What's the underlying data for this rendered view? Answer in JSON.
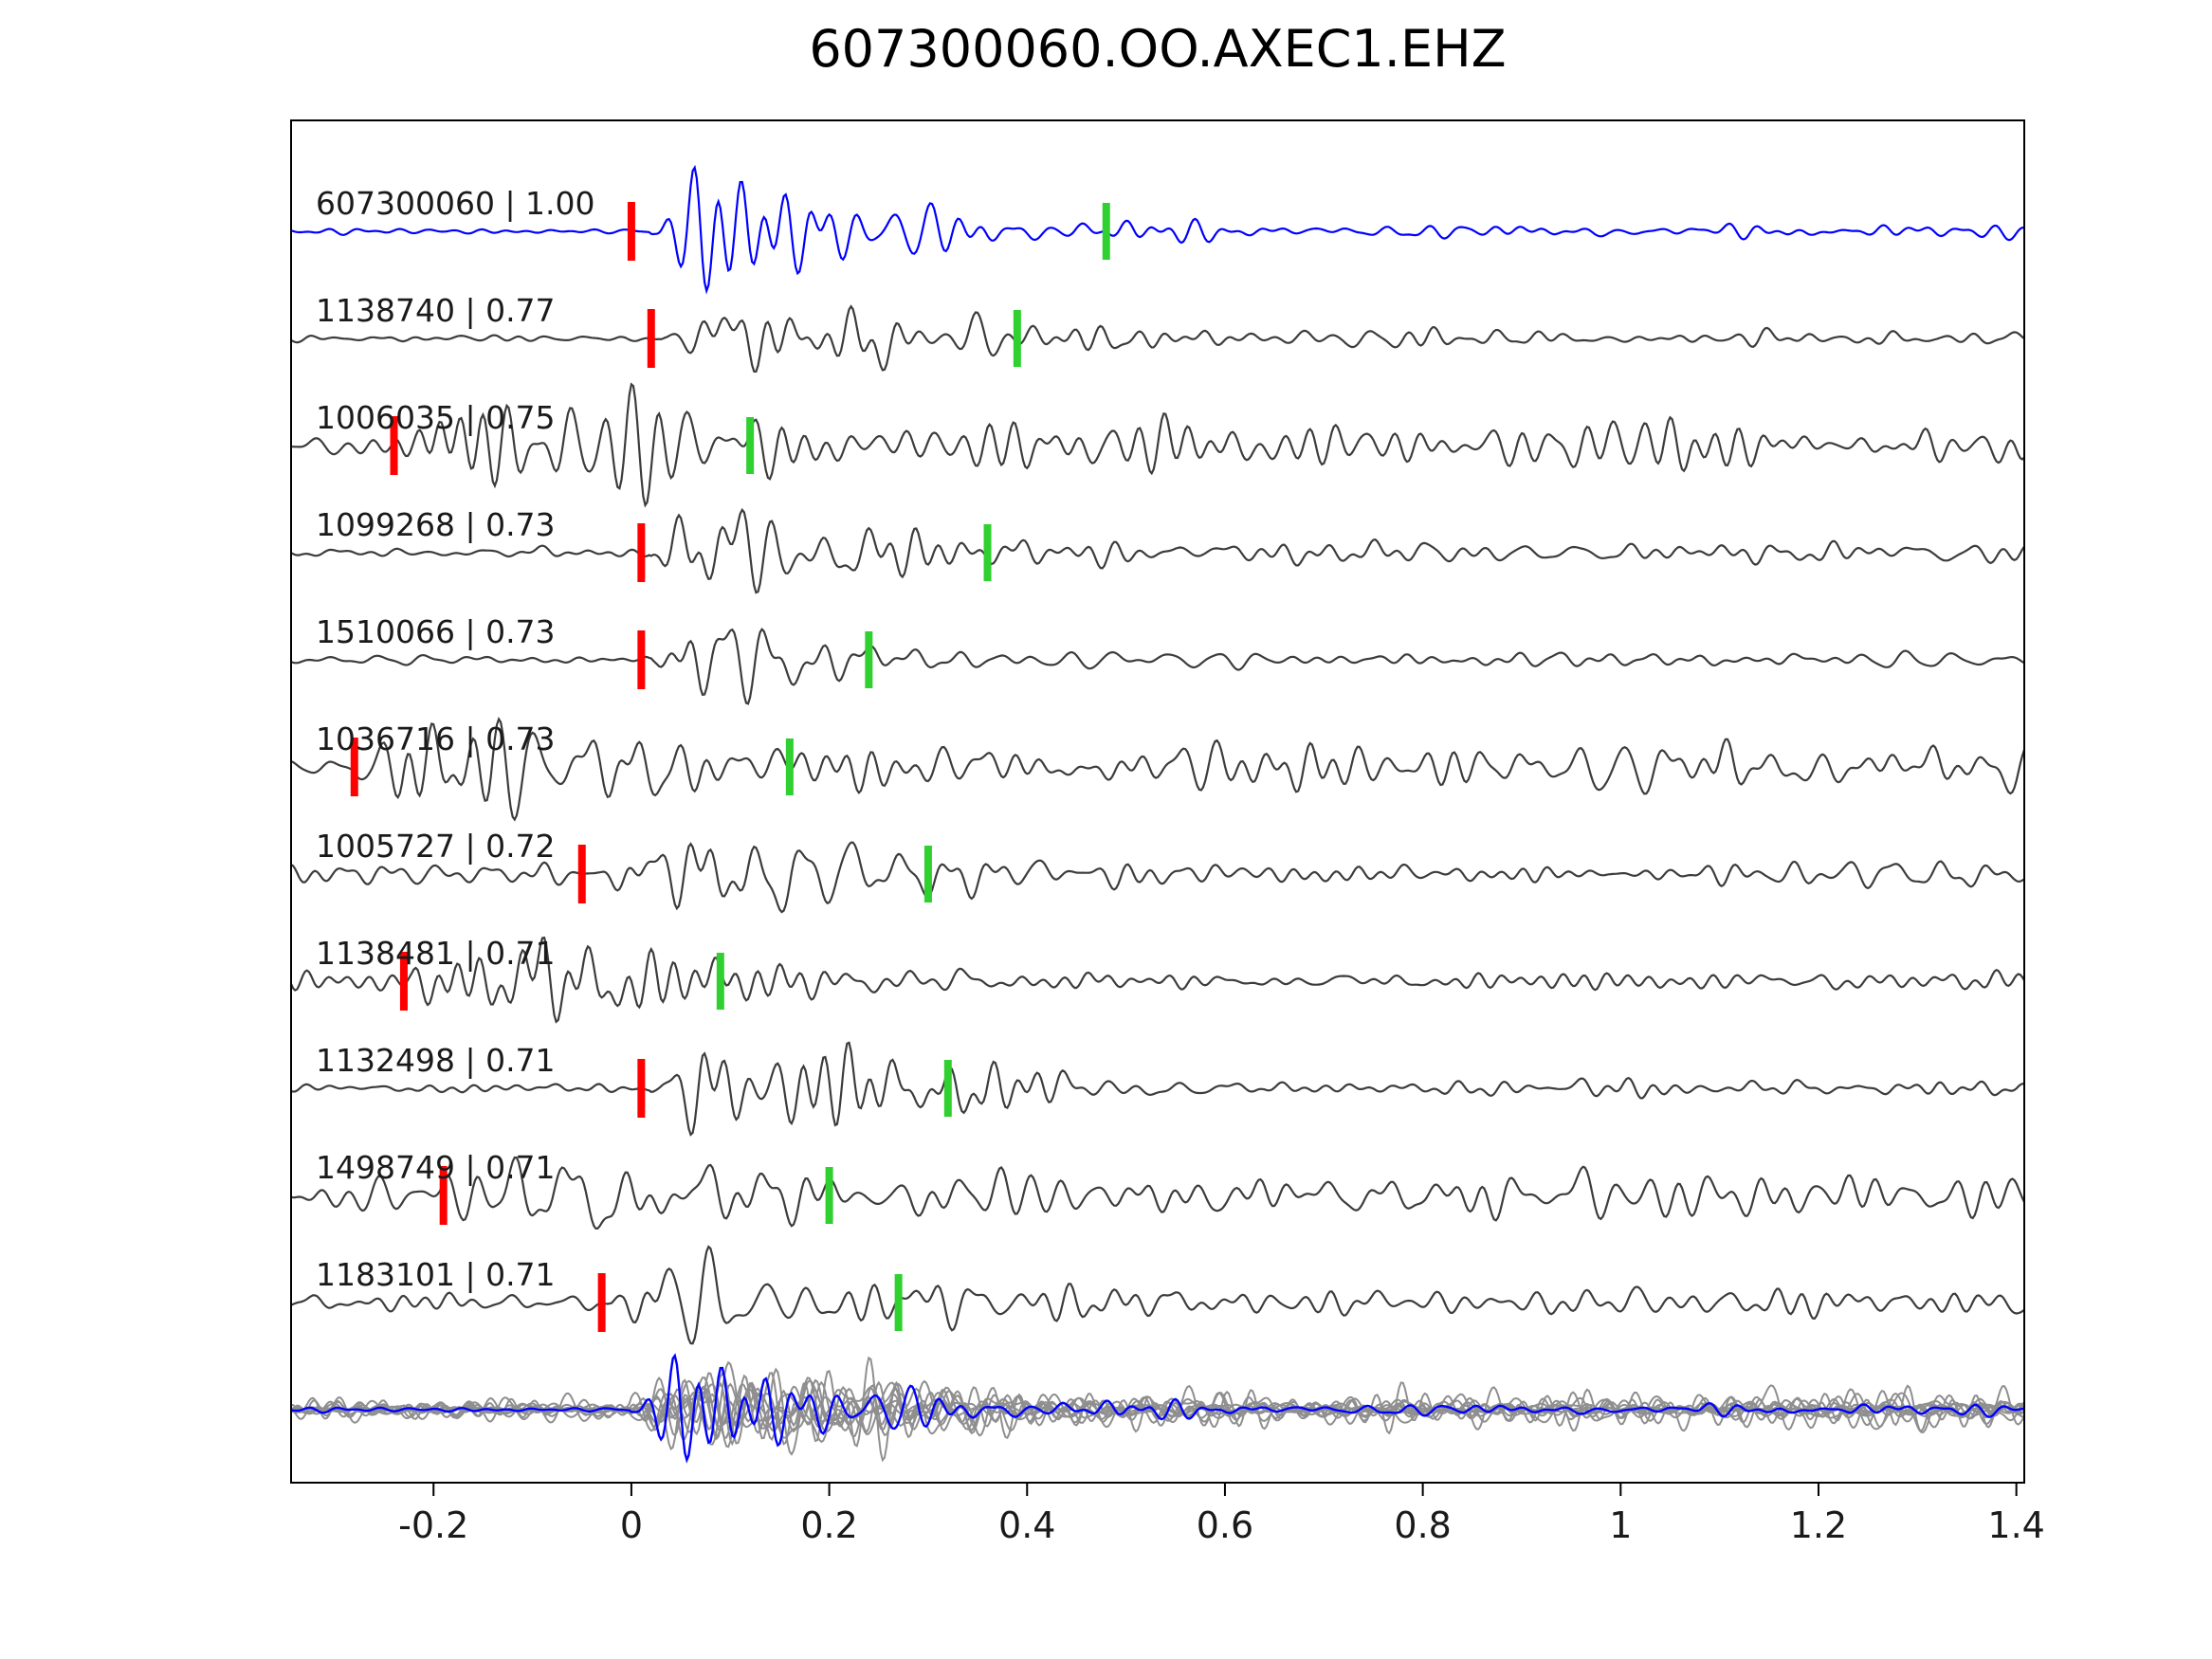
{
  "title": "607300060.OO.AXEC1.EHZ",
  "chart_data": {
    "type": "line",
    "title": "607300060.OO.AXEC1.EHZ",
    "xlabel": "",
    "ylabel": "",
    "xlim": [
      -0.344,
      1.408
    ],
    "x_ticks": [
      -0.2,
      0,
      0.2,
      0.4,
      0.6,
      0.8,
      1,
      1.2,
      1.4
    ],
    "x_tick_labels": [
      "-0.2",
      "0",
      "0.2",
      "0.4",
      "0.6",
      "0.8",
      "1",
      "1.2",
      "1.4"
    ],
    "grid": false,
    "legend": false,
    "colors": {
      "template_trace": "#0000ff",
      "trace": "#3c3c3c",
      "overlay_trace": "#8f8f8f",
      "p_pick": "#ff0000",
      "s_pick": "#2fd02f",
      "axis": "#000000",
      "text": "#1a1a1a"
    },
    "traces": [
      {
        "id": "607300060",
        "similarity": "1.00",
        "label": "607300060 | 1.00",
        "is_template": true,
        "p_pick": 0.0,
        "s_pick": 0.48,
        "waveform": {
          "onset": 0.02,
          "pre_noise": 0.04,
          "decay": 0.3,
          "coda": 0.1
        }
      },
      {
        "id": "1138740",
        "similarity": "0.77",
        "label": "1138740 | 0.77",
        "is_template": false,
        "p_pick": 0.02,
        "s_pick": 0.39,
        "waveform": {
          "onset": 0.03,
          "pre_noise": 0.06,
          "decay": 0.28,
          "coda": 0.12
        }
      },
      {
        "id": "1006035",
        "similarity": "0.75",
        "label": "1006035 | 0.75",
        "is_template": false,
        "p_pick": -0.24,
        "s_pick": 0.12,
        "waveform": {
          "onset": -0.24,
          "pre_noise": 0.22,
          "decay": 0.55,
          "coda": 0.38
        }
      },
      {
        "id": "1099268",
        "similarity": "0.73",
        "label": "1099268 | 0.73",
        "is_template": false,
        "p_pick": 0.01,
        "s_pick": 0.36,
        "waveform": {
          "onset": 0.02,
          "pre_noise": 0.08,
          "decay": 0.3,
          "coda": 0.16
        }
      },
      {
        "id": "1510066",
        "similarity": "0.73",
        "label": "1510066 | 0.73",
        "is_template": false,
        "p_pick": 0.01,
        "s_pick": 0.24,
        "waveform": {
          "onset": 0.02,
          "pre_noise": 0.06,
          "decay": 0.2,
          "coda": 0.1
        }
      },
      {
        "id": "1036716",
        "similarity": "0.73",
        "label": "1036716 | 0.73",
        "is_template": false,
        "p_pick": -0.28,
        "s_pick": 0.16,
        "waveform": {
          "onset": -0.28,
          "pre_noise": 0.22,
          "decay": 0.55,
          "coda": 0.36
        }
      },
      {
        "id": "1005727",
        "similarity": "0.72",
        "label": "1005727 | 0.72",
        "is_template": false,
        "p_pick": -0.05,
        "s_pick": 0.3,
        "waveform": {
          "onset": -0.04,
          "pre_noise": 0.15,
          "decay": 0.32,
          "coda": 0.18
        }
      },
      {
        "id": "1138481",
        "similarity": "0.71",
        "label": "1138481 | 0.71",
        "is_template": false,
        "p_pick": -0.23,
        "s_pick": 0.09,
        "waveform": {
          "onset": -0.23,
          "pre_noise": 0.16,
          "decay": 0.3,
          "coda": 0.13
        }
      },
      {
        "id": "1132498",
        "similarity": "0.71",
        "label": "1132498 | 0.71",
        "is_template": false,
        "p_pick": 0.01,
        "s_pick": 0.32,
        "waveform": {
          "onset": 0.02,
          "pre_noise": 0.08,
          "decay": 0.3,
          "coda": 0.12
        }
      },
      {
        "id": "1498749",
        "similarity": "0.71",
        "label": "1498749 | 0.71",
        "is_template": false,
        "p_pick": -0.19,
        "s_pick": 0.2,
        "waveform": {
          "onset": -0.19,
          "pre_noise": 0.26,
          "decay": 0.5,
          "coda": 0.36
        }
      },
      {
        "id": "1183101",
        "similarity": "0.71",
        "label": "1183101 | 0.71",
        "is_template": false,
        "p_pick": -0.03,
        "s_pick": 0.27,
        "waveform": {
          "onset": -0.02,
          "pre_noise": 0.12,
          "decay": 0.3,
          "coda": 0.2
        }
      }
    ],
    "stack_row": {
      "description": "All detections aligned on pick and overlaid in gray with the blue template on top"
    }
  }
}
